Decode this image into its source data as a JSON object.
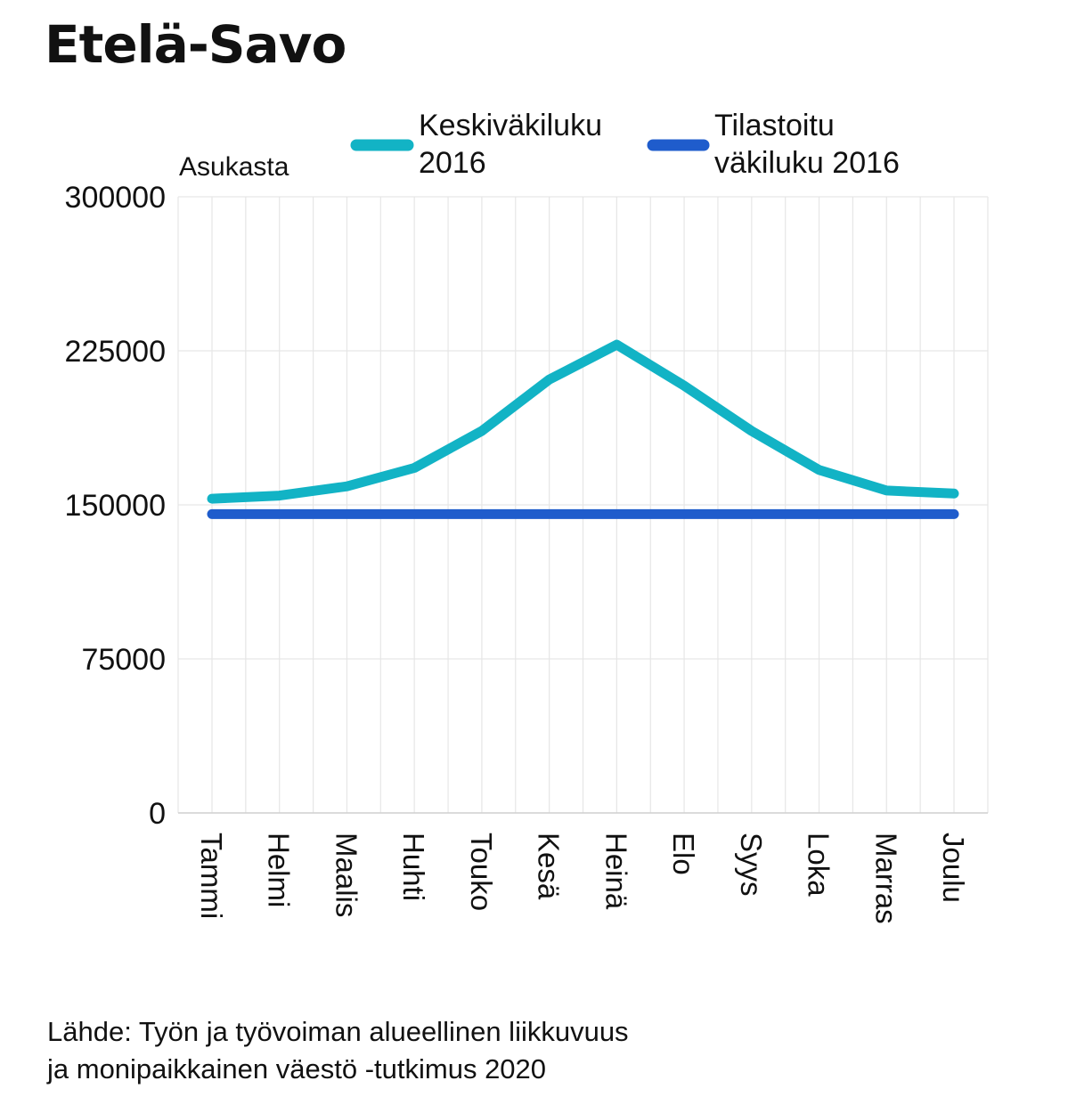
{
  "title": "Etelä-Savo",
  "source": "Lähde: Työn ja työvoiman alueellinen liikkuvuus\nja monipaikkainen väestö -tutkimus 2020",
  "colors": {
    "keskivakiluku": "#12b3c5",
    "tilastoitu": "#1f5ccc"
  },
  "chart_data": {
    "type": "line",
    "ylabel": "Asukasta",
    "ylim": [
      0,
      300000
    ],
    "yticks": [
      "0",
      "75000",
      "150000",
      "225000",
      "300000"
    ],
    "categories": [
      "Tammi",
      "Helmi",
      "Maalis",
      "Huhti",
      "Touko",
      "Kesä",
      "Heinä",
      "Elo",
      "Syys",
      "Loka",
      "Marras",
      "Joulu"
    ],
    "grid": true,
    "legend": "top",
    "series": [
      {
        "name": "Keskiväkiluku 2016",
        "name_lines": [
          "Keskiväkiluku",
          "2016"
        ],
        "color": "#12b3c5",
        "values": [
          153000,
          154500,
          159000,
          168000,
          186000,
          211000,
          228000,
          208000,
          186000,
          167000,
          157000,
          155500
        ]
      },
      {
        "name": "Tilastoitu väkiluku 2016",
        "name_lines": [
          "Tilastoitu",
          "väkiluku 2016"
        ],
        "color": "#1f5ccc",
        "values": [
          145500,
          145500,
          145500,
          145500,
          145500,
          145500,
          145500,
          145500,
          145500,
          145500,
          145500,
          145500
        ]
      }
    ]
  }
}
